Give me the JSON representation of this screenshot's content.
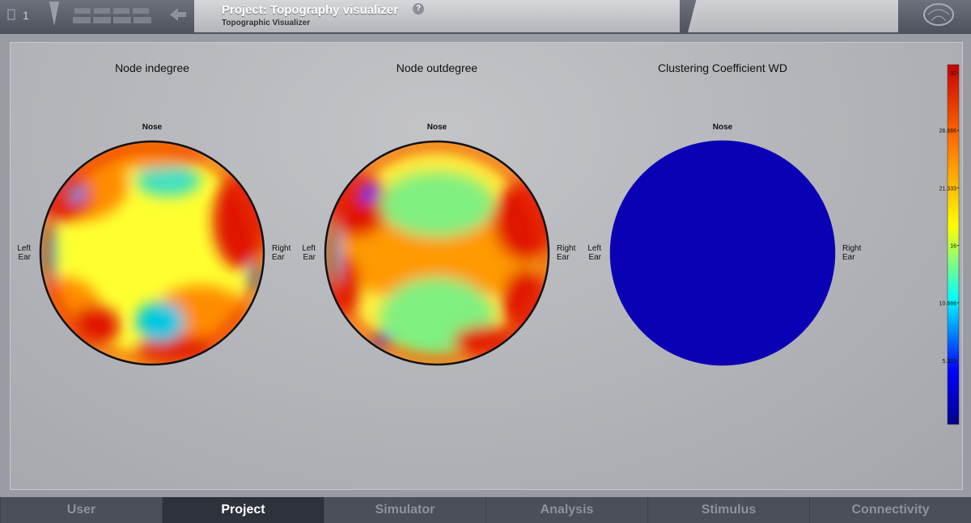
{
  "header": {
    "page_number": "1",
    "title": "Project: Topography visualizer",
    "help": "?",
    "subtitle": "Topographic Visualizer"
  },
  "plots": [
    {
      "title": "Node indegree",
      "nose": "Nose",
      "left_ear": [
        "Left",
        "Ear"
      ],
      "right_ear": [
        "Right",
        "Ear"
      ]
    },
    {
      "title": "Node outdegree",
      "nose": "Nose",
      "left_ear": [
        "Left",
        "Ear"
      ],
      "right_ear": [
        "Right",
        "Ear"
      ]
    },
    {
      "title": "Clustering Coefficient WD",
      "nose": "Nose",
      "left_ear": [
        "Left",
        "Ear"
      ],
      "right_ear": [
        "Right",
        "Ear"
      ]
    }
  ],
  "colorbar": {
    "lim": [
      0,
      32
    ],
    "ticks": [
      32,
      26.666,
      21.333,
      16,
      10.666,
      5.333,
      0
    ]
  },
  "nav": [
    "User",
    "Project",
    "Simulator",
    "Analysis",
    "Stimulus",
    "Connectivity"
  ]
}
